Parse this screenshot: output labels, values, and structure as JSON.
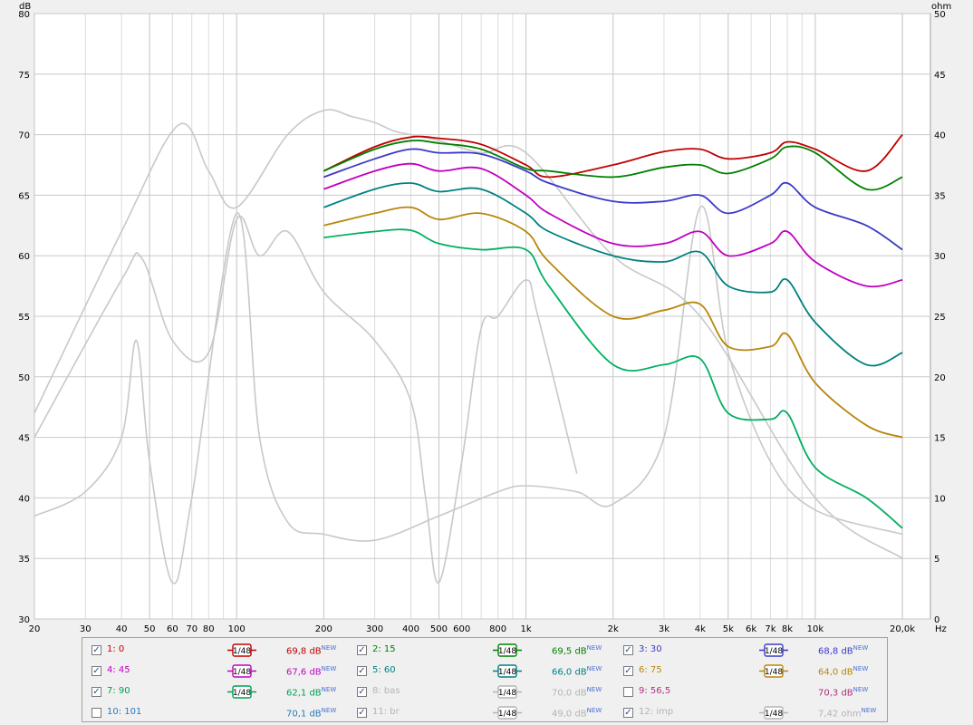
{
  "axes": {
    "left_unit": "dB",
    "right_unit": "ohm",
    "x_unit": "Hz",
    "db_ticks": [
      "30",
      "35",
      "40",
      "45",
      "50",
      "55",
      "60",
      "65",
      "70",
      "75",
      "80"
    ],
    "ohm_ticks": [
      "0",
      "5",
      "10",
      "15",
      "20",
      "25",
      "30",
      "35",
      "40",
      "45",
      "50"
    ],
    "freq_labels": [
      {
        "f": 20,
        "t": "20"
      },
      {
        "f": 30,
        "t": "30"
      },
      {
        "f": 40,
        "t": "40"
      },
      {
        "f": 50,
        "t": "50"
      },
      {
        "f": 60,
        "t": "60"
      },
      {
        "f": 70,
        "t": "70"
      },
      {
        "f": 80,
        "t": "80"
      },
      {
        "f": 100,
        "t": "100"
      },
      {
        "f": 200,
        "t": "200"
      },
      {
        "f": 300,
        "t": "300"
      },
      {
        "f": 400,
        "t": "400"
      },
      {
        "f": 500,
        "t": "500"
      },
      {
        "f": 600,
        "t": "600"
      },
      {
        "f": 800,
        "t": "800"
      },
      {
        "f": 1000,
        "t": "1k"
      },
      {
        "f": 2000,
        "t": "2k"
      },
      {
        "f": 3000,
        "t": "3k"
      },
      {
        "f": 4000,
        "t": "4k"
      },
      {
        "f": 5000,
        "t": "5k"
      },
      {
        "f": 6000,
        "t": "6k"
      },
      {
        "f": 7000,
        "t": "7k"
      },
      {
        "f": 8000,
        "t": "8k"
      },
      {
        "f": 10000,
        "t": "10k"
      },
      {
        "f": 20000,
        "t": "20,0k"
      }
    ]
  },
  "chart_data": {
    "type": "line",
    "xscale": "log",
    "xlim": [
      20,
      25000
    ],
    "ylim": [
      30,
      80
    ],
    "y2lim": [
      0,
      50
    ],
    "grid": true,
    "series": [
      {
        "name": "1: 0",
        "color": "#c00000",
        "x": [
          200,
          300,
          400,
          500,
          700,
          1000,
          1200,
          2000,
          3000,
          4000,
          5000,
          7000,
          8000,
          10000,
          15000,
          20000
        ],
        "y": [
          67.0,
          69.0,
          69.8,
          69.7,
          69.2,
          67.5,
          66.5,
          67.5,
          68.6,
          68.8,
          68.0,
          68.5,
          69.4,
          68.8,
          67.0,
          70.0
        ]
      },
      {
        "name": "2: 15",
        "color": "#008000",
        "x": [
          200,
          300,
          400,
          500,
          700,
          1000,
          1200,
          2000,
          3000,
          4000,
          5000,
          7000,
          8000,
          10000,
          15000,
          20000
        ],
        "y": [
          67.0,
          68.8,
          69.5,
          69.3,
          68.8,
          67.2,
          67.0,
          66.5,
          67.3,
          67.5,
          66.8,
          68.0,
          69.0,
          68.5,
          65.5,
          66.5
        ]
      },
      {
        "name": "3: 30",
        "color": "#3a3ac8",
        "x": [
          200,
          300,
          400,
          500,
          700,
          1000,
          1200,
          2000,
          3000,
          4000,
          5000,
          7000,
          8000,
          10000,
          15000,
          20000
        ],
        "y": [
          66.5,
          68.0,
          68.8,
          68.5,
          68.4,
          67.0,
          66.0,
          64.5,
          64.5,
          65.0,
          63.5,
          65.0,
          66.0,
          64.0,
          62.5,
          60.5
        ]
      },
      {
        "name": "4: 45",
        "color": "#c000c0",
        "x": [
          200,
          300,
          400,
          500,
          700,
          1000,
          1200,
          2000,
          3000,
          4000,
          5000,
          7000,
          8000,
          10000,
          15000,
          20000
        ],
        "y": [
          65.5,
          67.0,
          67.6,
          67.0,
          67.2,
          65.0,
          63.5,
          61.0,
          61.0,
          62.0,
          60.0,
          61.0,
          62.0,
          59.5,
          57.5,
          58.0
        ]
      },
      {
        "name": "5: 60",
        "color": "#008080",
        "x": [
          200,
          300,
          400,
          500,
          700,
          1000,
          1200,
          2000,
          3000,
          4000,
          5000,
          7000,
          8000,
          10000,
          15000,
          20000
        ],
        "y": [
          64.0,
          65.5,
          66.0,
          65.3,
          65.5,
          63.5,
          62.0,
          60.0,
          59.5,
          60.3,
          57.5,
          57.0,
          58.0,
          54.5,
          51.0,
          52.0
        ]
      },
      {
        "name": "6: 75",
        "color": "#b8860b",
        "x": [
          200,
          300,
          400,
          500,
          700,
          1000,
          1200,
          2000,
          3000,
          4000,
          5000,
          7000,
          8000,
          10000,
          15000,
          20000
        ],
        "y": [
          62.5,
          63.5,
          64.0,
          63.0,
          63.5,
          62.0,
          59.5,
          55.0,
          55.5,
          56.0,
          52.5,
          52.5,
          53.5,
          49.5,
          46.0,
          45.0
        ]
      },
      {
        "name": "7: 90",
        "color": "#00b060",
        "x": [
          200,
          300,
          400,
          500,
          700,
          1000,
          1200,
          2000,
          3000,
          4000,
          5000,
          7000,
          8000,
          10000,
          15000,
          20000
        ],
        "y": [
          61.5,
          62.0,
          62.1,
          61.0,
          60.5,
          60.5,
          57.5,
          51.0,
          51.0,
          51.5,
          47.0,
          46.5,
          47.0,
          42.5,
          40.0,
          37.5
        ]
      },
      {
        "name": "8: bas",
        "color": "#c8c8c8",
        "x": [
          20,
          40,
          63,
          80,
          100,
          150,
          200,
          250,
          300,
          350,
          400,
          500,
          700,
          1000,
          2000,
          4000,
          10000,
          20000
        ],
        "y": [
          47.0,
          62.0,
          70.8,
          67.0,
          64.0,
          70.0,
          72.0,
          71.5,
          71.0,
          70.3,
          70.0,
          69.5,
          68.5,
          68.5,
          60.0,
          55.0,
          40.0,
          35.0
        ]
      },
      {
        "name": "11: br",
        "color": "#c8c8c8",
        "x": [
          20,
          40,
          47,
          60,
          80,
          100,
          120,
          150,
          200,
          300,
          400,
          450,
          500,
          600,
          700,
          800,
          1000,
          1100,
          1500
        ],
        "y": [
          45.0,
          58.0,
          59.8,
          53.0,
          52.0,
          63.0,
          60.0,
          62.0,
          57.0,
          53.0,
          48.0,
          40.0,
          33.0,
          43.0,
          54.0,
          55.0,
          58.0,
          55.0,
          42.0
        ]
      },
      {
        "name": "12: imp",
        "color": "#c8c8c8",
        "x": [
          20,
          30,
          40,
          45,
          50,
          60,
          70,
          100,
          120,
          150,
          200,
          300,
          500,
          800,
          1000,
          1500,
          2000,
          3000,
          4000,
          5000,
          7000,
          10000,
          20000
        ],
        "y": [
          8.5,
          10.5,
          15.0,
          23.0,
          13.0,
          3.0,
          10.0,
          33.5,
          15.0,
          8.0,
          7.0,
          6.5,
          8.5,
          10.5,
          11.0,
          10.5,
          9.5,
          15.0,
          34.0,
          22.0,
          13.0,
          9.0,
          7.0
        ]
      }
    ]
  },
  "legend": [
    [
      {
        "checked": true,
        "name": "1: 0",
        "color": "#c00000",
        "smooth": "1/48",
        "value": "69,8 dB",
        "badge": "NEW"
      },
      {
        "checked": true,
        "name": "2: 15",
        "color": "#008000",
        "smooth": "1/48",
        "value": "69,5 dB",
        "badge": "NEW"
      },
      {
        "checked": true,
        "name": "3: 30",
        "color": "#3a3ac8",
        "smooth": "1/48",
        "value": "68,8 dB",
        "badge": "NEW"
      }
    ],
    [
      {
        "checked": true,
        "name": "4: 45",
        "color": "#c000c0",
        "smooth": "1/48",
        "value": "67,6 dB",
        "badge": "NEW"
      },
      {
        "checked": true,
        "name": "5: 60",
        "color": "#008080",
        "smooth": "1/48",
        "value": "66,0 dB",
        "badge": "NEW"
      },
      {
        "checked": true,
        "name": "6: 75",
        "color": "#b8860b",
        "smooth": "1/48",
        "value": "64,0 dB",
        "badge": "NEW"
      }
    ],
    [
      {
        "checked": true,
        "name": "7: 90",
        "color": "#00a050",
        "smooth": "1/48",
        "value": "62,1 dB",
        "badge": "NEW"
      },
      {
        "checked": true,
        "name": "8: bas",
        "color": "#b4b4b4",
        "smooth": "1/48",
        "value": "70,0 dB",
        "badge": "NEW"
      },
      {
        "checked": false,
        "name": "9: 56,5",
        "color": "#b03080",
        "smooth": "",
        "value": "70,3 dB",
        "badge": "NEW"
      }
    ],
    [
      {
        "checked": false,
        "name": "10: 101",
        "color": "#2a7ab8",
        "smooth": "",
        "value": "70,1 dB",
        "badge": "NEW"
      },
      {
        "checked": true,
        "name": "11: br",
        "color": "#b4b4b4",
        "smooth": "1/48",
        "value": "49,0 dB",
        "badge": "NEW"
      },
      {
        "checked": true,
        "name": "12: imp",
        "color": "#b4b4b4",
        "smooth": "1/48",
        "value": "7,42 ohm",
        "badge": "NEW"
      }
    ]
  ]
}
